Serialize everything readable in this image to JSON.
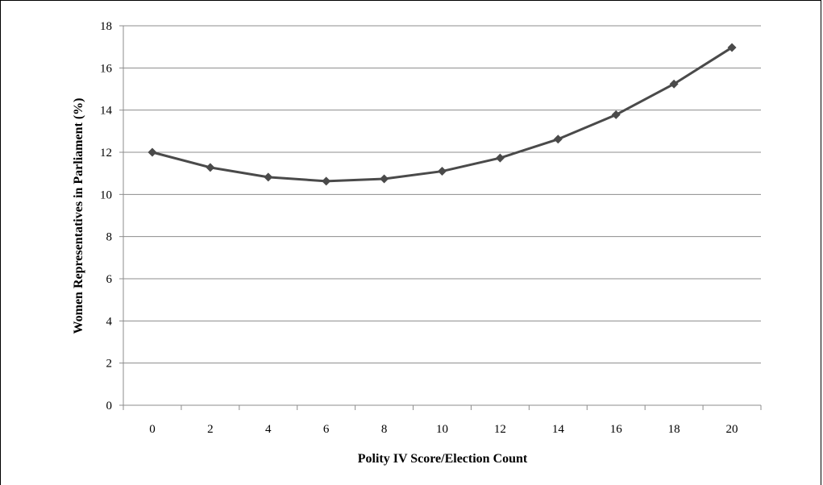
{
  "chart_data": {
    "type": "line",
    "title": "",
    "xlabel": "Polity IV Score/Election Count",
    "ylabel": "Women Representatives in Parliament (%)",
    "x": [
      0,
      2,
      4,
      6,
      8,
      10,
      12,
      14,
      16,
      18,
      20
    ],
    "series": [
      {
        "values": [
          12.0,
          11.28,
          10.82,
          10.63,
          10.74,
          11.1,
          11.73,
          12.62,
          13.78,
          15.24,
          16.97
        ],
        "color": "#4a4a4a",
        "marker": "diamond"
      }
    ],
    "xticks": [
      "0",
      "2",
      "4",
      "6",
      "8",
      "10",
      "12",
      "14",
      "16",
      "18",
      "20"
    ],
    "yticks": [
      "0",
      "2",
      "4",
      "6",
      "8",
      "10",
      "12",
      "14",
      "16",
      "18"
    ],
    "ylim": [
      0,
      18
    ],
    "grid": "horizontal",
    "legend": "none"
  }
}
